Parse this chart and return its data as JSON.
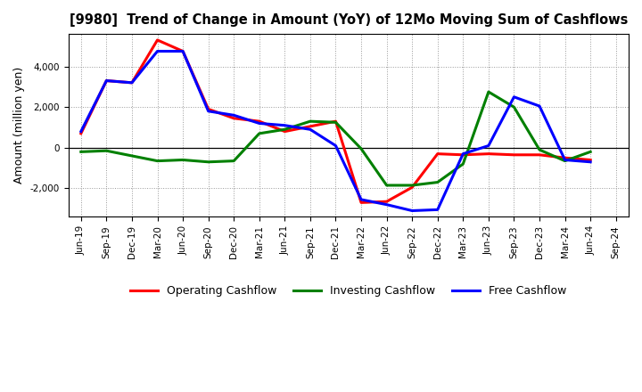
{
  "title": "[9980]  Trend of Change in Amount (YoY) of 12Mo Moving Sum of Cashflows",
  "xlabel": "",
  "ylabel": "Amount (million yen)",
  "x_labels": [
    "Jun-19",
    "Sep-19",
    "Dec-19",
    "Mar-20",
    "Jun-20",
    "Sep-20",
    "Dec-20",
    "Mar-21",
    "Jun-21",
    "Sep-21",
    "Dec-21",
    "Mar-22",
    "Jun-22",
    "Sep-22",
    "Dec-22",
    "Mar-23",
    "Jun-23",
    "Sep-23",
    "Dec-23",
    "Mar-24",
    "Jun-24",
    "Sep-24"
  ],
  "operating_cashflow": [
    700,
    3300,
    3200,
    5300,
    4750,
    1900,
    1450,
    1300,
    800,
    1050,
    1300,
    -2700,
    -2650,
    -1950,
    -300,
    -350,
    -300,
    -350,
    -350,
    -500,
    -600,
    null
  ],
  "investing_cashflow": [
    -200,
    -150,
    -400,
    -650,
    -600,
    -700,
    -650,
    700,
    900,
    1300,
    1250,
    -50,
    -1850,
    -1850,
    -1700,
    -800,
    2750,
    2000,
    -100,
    -650,
    -200,
    null
  ],
  "free_cashflow": [
    800,
    3300,
    3200,
    4750,
    4750,
    1800,
    1600,
    1200,
    1100,
    900,
    100,
    -2550,
    -2800,
    -3100,
    -3050,
    -300,
    100,
    2500,
    2050,
    -600,
    -700,
    null
  ],
  "operating_color": "#ff0000",
  "investing_color": "#008000",
  "free_color": "#0000ff",
  "background_color": "#ffffff",
  "grid_color": "#999999",
  "ylim": [
    -3400,
    5600
  ],
  "yticks": [
    -2000,
    0,
    2000,
    4000
  ],
  "linewidth": 2.2
}
